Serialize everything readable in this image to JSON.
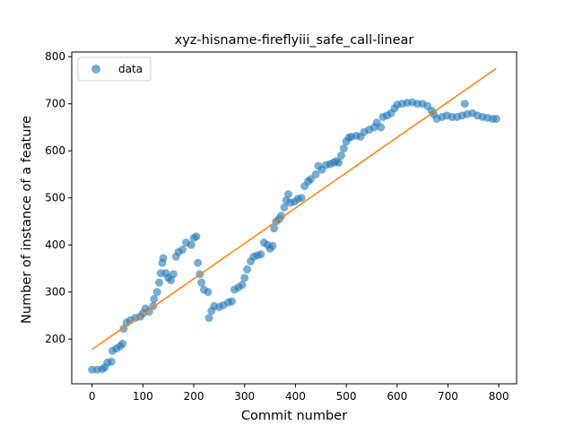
{
  "chart_data": {
    "type": "scatter",
    "title": "xyz-hisname-fireflyiii_safe_call-linear",
    "xlabel": "Commit number",
    "ylabel": "Number of instance of a feature",
    "xlim": [
      -40,
      835
    ],
    "ylim": [
      105,
      810
    ],
    "xticks": [
      0,
      100,
      200,
      300,
      400,
      500,
      600,
      700,
      800
    ],
    "yticks": [
      200,
      300,
      400,
      500,
      600,
      700,
      800
    ],
    "legend": {
      "entries": [
        "data"
      ],
      "position": "top-left"
    },
    "colors": {
      "data": "#1f77b4",
      "fit": "#ff7f0e"
    },
    "series": [
      {
        "name": "data",
        "kind": "scatter",
        "points": [
          [
            0,
            135
          ],
          [
            10,
            135
          ],
          [
            20,
            136
          ],
          [
            25,
            140
          ],
          [
            30,
            150
          ],
          [
            38,
            152
          ],
          [
            40,
            175
          ],
          [
            48,
            180
          ],
          [
            55,
            185
          ],
          [
            60,
            190
          ],
          [
            62,
            222
          ],
          [
            68,
            235
          ],
          [
            75,
            240
          ],
          [
            85,
            245
          ],
          [
            95,
            248
          ],
          [
            100,
            255
          ],
          [
            105,
            265
          ],
          [
            112,
            258
          ],
          [
            120,
            270
          ],
          [
            122,
            285
          ],
          [
            128,
            300
          ],
          [
            132,
            320
          ],
          [
            135,
            340
          ],
          [
            138,
            362
          ],
          [
            140,
            372
          ],
          [
            145,
            340
          ],
          [
            150,
            330
          ],
          [
            155,
            325
          ],
          [
            160,
            338
          ],
          [
            165,
            375
          ],
          [
            170,
            385
          ],
          [
            178,
            390
          ],
          [
            185,
            405
          ],
          [
            195,
            400
          ],
          [
            200,
            415
          ],
          [
            205,
            418
          ],
          [
            208,
            362
          ],
          [
            212,
            338
          ],
          [
            215,
            320
          ],
          [
            220,
            305
          ],
          [
            228,
            300
          ],
          [
            230,
            245
          ],
          [
            235,
            260
          ],
          [
            240,
            270
          ],
          [
            250,
            268
          ],
          [
            258,
            272
          ],
          [
            268,
            278
          ],
          [
            275,
            280
          ],
          [
            280,
            305
          ],
          [
            288,
            310
          ],
          [
            295,
            315
          ],
          [
            300,
            330
          ],
          [
            305,
            348
          ],
          [
            312,
            365
          ],
          [
            318,
            375
          ],
          [
            325,
            378
          ],
          [
            332,
            380
          ],
          [
            338,
            405
          ],
          [
            345,
            400
          ],
          [
            350,
            392
          ],
          [
            355,
            398
          ],
          [
            358,
            435
          ],
          [
            362,
            450
          ],
          [
            368,
            455
          ],
          [
            372,
            462
          ],
          [
            378,
            480
          ],
          [
            382,
            495
          ],
          [
            386,
            508
          ],
          [
            390,
            490
          ],
          [
            398,
            492
          ],
          [
            405,
            498
          ],
          [
            412,
            500
          ],
          [
            418,
            525
          ],
          [
            425,
            535
          ],
          [
            430,
            540
          ],
          [
            440,
            550
          ],
          [
            445,
            568
          ],
          [
            452,
            560
          ],
          [
            460,
            570
          ],
          [
            468,
            572
          ],
          [
            475,
            575
          ],
          [
            480,
            578
          ],
          [
            485,
            575
          ],
          [
            490,
            590
          ],
          [
            495,
            605
          ],
          [
            500,
            620
          ],
          [
            505,
            628
          ],
          [
            510,
            630
          ],
          [
            520,
            632
          ],
          [
            528,
            630
          ],
          [
            535,
            640
          ],
          [
            545,
            645
          ],
          [
            555,
            650
          ],
          [
            560,
            660
          ],
          [
            568,
            650
          ],
          [
            572,
            672
          ],
          [
            580,
            675
          ],
          [
            588,
            680
          ],
          [
            595,
            690
          ],
          [
            600,
            698
          ],
          [
            610,
            700
          ],
          [
            620,
            702
          ],
          [
            630,
            703
          ],
          [
            640,
            700
          ],
          [
            650,
            700
          ],
          [
            660,
            695
          ],
          [
            668,
            685
          ],
          [
            672,
            678
          ],
          [
            678,
            668
          ],
          [
            688,
            672
          ],
          [
            698,
            675
          ],
          [
            708,
            672
          ],
          [
            718,
            672
          ],
          [
            728,
            675
          ],
          [
            733,
            700
          ],
          [
            738,
            678
          ],
          [
            748,
            680
          ],
          [
            758,
            675
          ],
          [
            768,
            672
          ],
          [
            778,
            670
          ],
          [
            788,
            668
          ],
          [
            795,
            668
          ]
        ]
      },
      {
        "name": "",
        "kind": "line",
        "points": [
          [
            0,
            178
          ],
          [
            795,
            775
          ]
        ]
      }
    ]
  }
}
